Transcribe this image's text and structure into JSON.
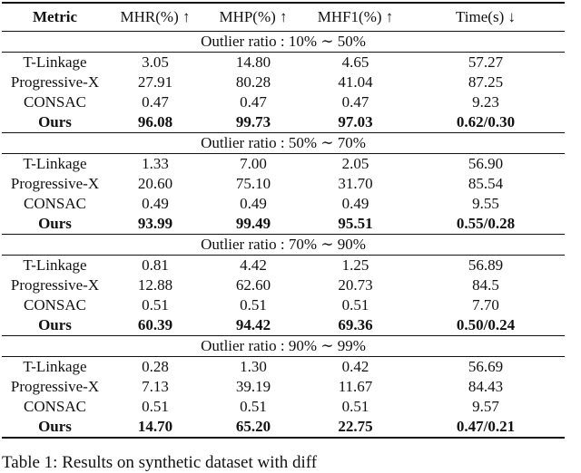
{
  "table": {
    "headers": [
      "Metric",
      "MHR(%) ↑",
      "MHP(%) ↑",
      "MHF1(%) ↑",
      "Time(s) ↓"
    ],
    "groups": [
      {
        "label": "Outlier ratio : 10% ∼ 50%",
        "rows": [
          [
            "T-Linkage",
            "3.05",
            "14.80",
            "4.65",
            "57.27"
          ],
          [
            "Progressive-X",
            "27.91",
            "80.28",
            "41.04",
            "87.25"
          ],
          [
            "CONSAC",
            "0.47",
            "0.47",
            "0.47",
            "9.23"
          ],
          [
            "Ours",
            "96.08",
            "99.73",
            "97.03",
            "0.62/0.30"
          ]
        ]
      },
      {
        "label": "Outlier ratio : 50% ∼ 70%",
        "rows": [
          [
            "T-Linkage",
            "1.33",
            "7.00",
            "2.05",
            "56.90"
          ],
          [
            "Progressive-X",
            "20.60",
            "75.10",
            "31.70",
            "85.54"
          ],
          [
            "CONSAC",
            "0.49",
            "0.49",
            "0.49",
            "9.55"
          ],
          [
            "Ours",
            "93.99",
            "99.49",
            "95.51",
            "0.55/0.28"
          ]
        ]
      },
      {
        "label": "Outlier ratio : 70% ∼ 90%",
        "rows": [
          [
            "T-Linkage",
            "0.81",
            "4.42",
            "1.25",
            "56.89"
          ],
          [
            "Progressive-X",
            "12.88",
            "62.60",
            "20.73",
            "84.5"
          ],
          [
            "CONSAC",
            "0.51",
            "0.51",
            "0.51",
            "7.70"
          ],
          [
            "Ours",
            "60.39",
            "94.42",
            "69.36",
            "0.50/0.24"
          ]
        ]
      },
      {
        "label": "Outlier ratio : 90% ∼ 99%",
        "rows": [
          [
            "T-Linkage",
            "0.28",
            "1.30",
            "0.42",
            "56.69"
          ],
          [
            "Progressive-X",
            "7.13",
            "39.19",
            "11.67",
            "84.43"
          ],
          [
            "CONSAC",
            "0.51",
            "0.51",
            "0.51",
            "9.57"
          ],
          [
            "Ours",
            "14.70",
            "65.20",
            "22.75",
            "0.47/0.21"
          ]
        ]
      }
    ]
  },
  "caption": "Table 1: Results on synthetic dataset with diff"
}
